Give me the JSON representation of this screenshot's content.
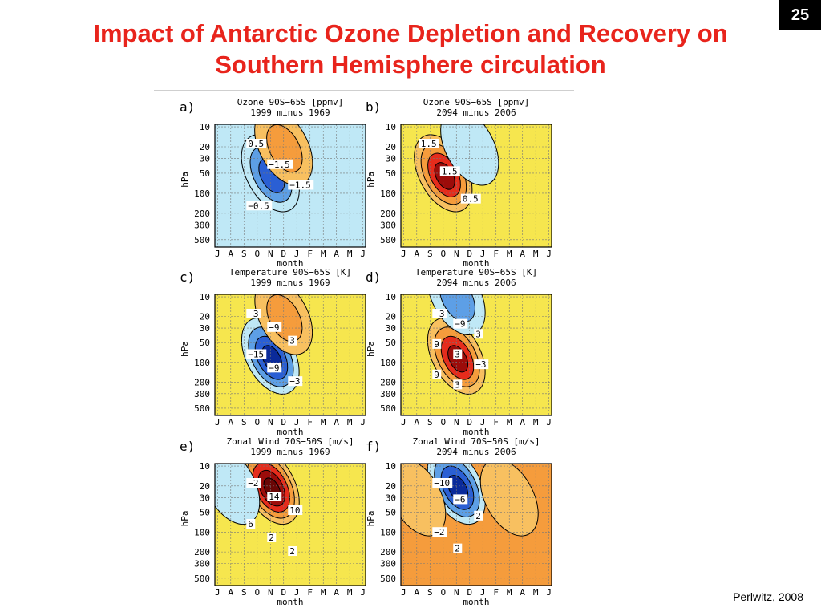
{
  "slide": {
    "number": "25",
    "title_line1": "Impact of Antarctic Ozone Depletion and Recovery on",
    "title_line2": "Southern Hemisphere circulation",
    "credit": "Perlwitz, 2008"
  },
  "colors": {
    "title": "#e8241c",
    "deep_red": "#9c0c0a",
    "red": "#e52c1c",
    "orange": "#f59c3c",
    "light_orange": "#f8c060",
    "yellow": "#f6e64e",
    "light_blue": "#bfe8f6",
    "mid_blue": "#5d9fe6",
    "blue": "#2a5fd4",
    "deep_blue": "#0a2a9a"
  },
  "chart_data": [
    {
      "type": "heatmap",
      "panel": "a)",
      "title": "Ozone 90S−65S [ppmv]",
      "subtitle": "1999 minus 1969",
      "ylabel": "hPa",
      "xlabel": "month",
      "x_ticks": [
        "J",
        "A",
        "S",
        "O",
        "N",
        "D",
        "J",
        "F",
        "M",
        "A",
        "M",
        "J"
      ],
      "y_ticks": [
        "10",
        "20",
        "30",
        "50",
        "100",
        "200",
        "300",
        "500"
      ],
      "yscale": "log",
      "grid": true,
      "background": "light_blue",
      "features": [
        {
          "sign": "negative",
          "peak_month": "N",
          "peak_hPa": 50,
          "levels": 3
        },
        {
          "sign": "positive",
          "peak_month": "D",
          "peak_hPa": 20,
          "levels": 2
        }
      ],
      "contour_labels": [
        "0.5",
        "−1.5",
        "−1.5",
        "−0.5"
      ]
    },
    {
      "type": "heatmap",
      "panel": "b)",
      "title": "Ozone 90S−65S [ppmv]",
      "subtitle": "2094 minus 2006",
      "ylabel": "hPa",
      "xlabel": "month",
      "x_ticks": [
        "J",
        "A",
        "S",
        "O",
        "N",
        "D",
        "J",
        "F",
        "M",
        "A",
        "M",
        "J"
      ],
      "y_ticks": [
        "10",
        "20",
        "30",
        "50",
        "100",
        "200",
        "300",
        "500"
      ],
      "yscale": "log",
      "grid": true,
      "background": "yellow",
      "features": [
        {
          "sign": "positive",
          "peak_month": "O",
          "peak_hPa": 50,
          "levels": 4
        },
        {
          "sign": "negative",
          "peak_month": "D",
          "peak_hPa": 20,
          "levels": 1
        }
      ],
      "contour_labels": [
        "1.5",
        "1.5",
        "0.5"
      ]
    },
    {
      "type": "heatmap",
      "panel": "c)",
      "title": "Temperature 90S−65S [K]",
      "subtitle": "1999 minus 1969",
      "ylabel": "hPa",
      "xlabel": "month",
      "x_ticks": [
        "J",
        "A",
        "S",
        "O",
        "N",
        "D",
        "J",
        "F",
        "M",
        "A",
        "M",
        "J"
      ],
      "y_ticks": [
        "10",
        "20",
        "30",
        "50",
        "100",
        "200",
        "300",
        "500"
      ],
      "yscale": "log",
      "grid": true,
      "background": "yellow",
      "features": [
        {
          "sign": "negative",
          "peak_month": "N",
          "peak_hPa": 80,
          "levels": 4
        },
        {
          "sign": "positive",
          "peak_month": "D",
          "peak_hPa": 20,
          "levels": 2
        }
      ],
      "contour_labels": [
        "−3",
        "−9",
        "3",
        "−15",
        "−9",
        "−3"
      ]
    },
    {
      "type": "heatmap",
      "panel": "d)",
      "title": "Temperature 90S−65S [K]",
      "subtitle": "2094 minus 2006",
      "ylabel": "hPa",
      "xlabel": "month",
      "x_ticks": [
        "J",
        "A",
        "S",
        "O",
        "N",
        "D",
        "J",
        "F",
        "M",
        "A",
        "M",
        "J"
      ],
      "y_ticks": [
        "10",
        "20",
        "30",
        "50",
        "100",
        "200",
        "300",
        "500"
      ],
      "yscale": "log",
      "grid": true,
      "background": "yellow",
      "features": [
        {
          "sign": "positive",
          "peak_month": "N",
          "peak_hPa": 80,
          "levels": 4
        },
        {
          "sign": "negative",
          "peak_month": "N",
          "peak_hPa": 10,
          "levels": 2
        }
      ],
      "contour_labels": [
        "−3",
        "−9",
        "3",
        "9",
        "3",
        "−3",
        "9",
        "3"
      ]
    },
    {
      "type": "heatmap",
      "panel": "e)",
      "title": "Zonal Wind 70S−50S [m/s]",
      "subtitle": "1999 minus 1969",
      "ylabel": "hPa",
      "xlabel": "month",
      "x_ticks": [
        "J",
        "A",
        "S",
        "O",
        "N",
        "D",
        "J",
        "F",
        "M",
        "A",
        "M",
        "J"
      ],
      "y_ticks": [
        "10",
        "20",
        "30",
        "50",
        "100",
        "200",
        "300",
        "500"
      ],
      "yscale": "log",
      "grid": true,
      "background": "yellow",
      "features": [
        {
          "sign": "positive",
          "peak_month": "N",
          "peak_hPa": 20,
          "levels": 5
        },
        {
          "sign": "negative",
          "peak_month": "A",
          "peak_hPa": 20,
          "levels": 1
        }
      ],
      "contour_labels": [
        "−2",
        "14",
        "10",
        "6",
        "2",
        "2"
      ]
    },
    {
      "type": "heatmap",
      "panel": "f)",
      "title": "Zonal Wind 70S−50S [m/s]",
      "subtitle": "2094 minus 2006",
      "ylabel": "hPa",
      "xlabel": "month",
      "x_ticks": [
        "J",
        "A",
        "S",
        "O",
        "N",
        "D",
        "J",
        "F",
        "M",
        "A",
        "M",
        "J"
      ],
      "y_ticks": [
        "10",
        "20",
        "30",
        "50",
        "100",
        "200",
        "300",
        "500"
      ],
      "yscale": "log",
      "grid": true,
      "background": "orange",
      "features": [
        {
          "sign": "negative",
          "peak_month": "N",
          "peak_hPa": 20,
          "levels": 4
        },
        {
          "sign": "positive",
          "peak_month": "A",
          "peak_hPa": 30,
          "levels": 1
        },
        {
          "sign": "positive",
          "peak_month": "M",
          "peak_hPa": 30,
          "levels": 1
        }
      ],
      "contour_labels": [
        "−10",
        "−6",
        "2",
        "−2",
        "2"
      ]
    }
  ]
}
